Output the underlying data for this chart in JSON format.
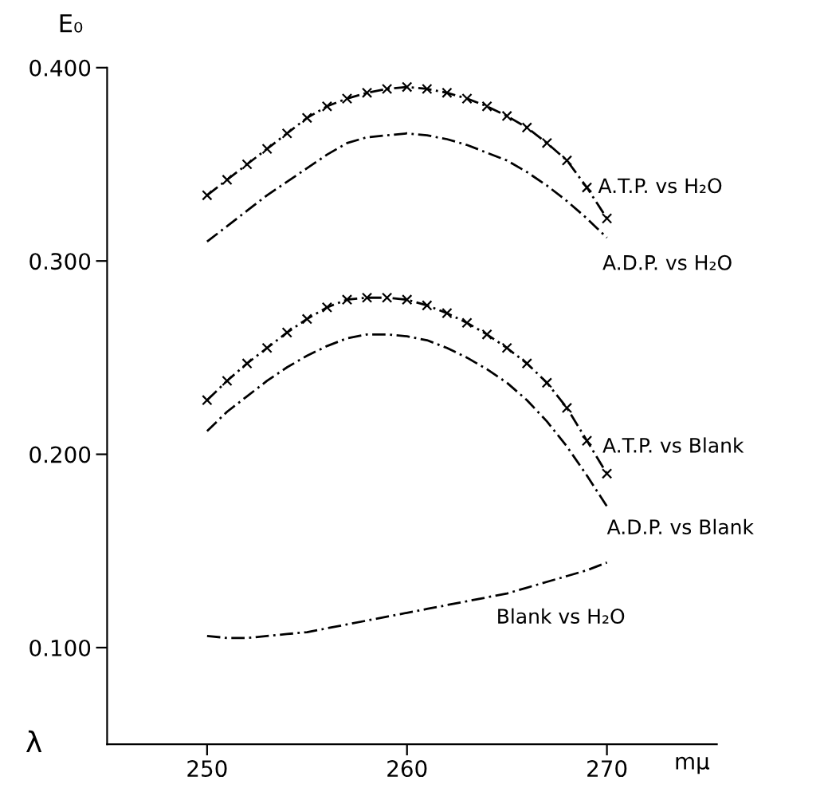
{
  "chart_data": {
    "type": "line",
    "ylabel": "E₀",
    "xlabel": "mμ",
    "annotations": [
      "λ"
    ],
    "x": [
      250,
      251,
      252,
      253,
      254,
      255,
      256,
      257,
      258,
      259,
      260,
      261,
      262,
      263,
      264,
      265,
      266,
      267,
      268,
      269,
      270
    ],
    "xlim": [
      245,
      275.5
    ],
    "xticks": [
      250,
      260,
      270
    ],
    "ylim": [
      0.05,
      0.4
    ],
    "yticks": [
      {
        "value": 0.1,
        "label": "0.100"
      },
      {
        "value": 0.2,
        "label": "0.200"
      },
      {
        "value": 0.3,
        "label": "0.300"
      },
      {
        "value": 0.4,
        "label": "0.400"
      }
    ],
    "grid": false,
    "series": [
      {
        "name": "A.T.P. vs H₂O",
        "color": "#000000",
        "marker": "cross",
        "line_style": "dashed",
        "values": [
          0.334,
          0.342,
          0.35,
          0.358,
          0.366,
          0.374,
          0.38,
          0.384,
          0.387,
          0.389,
          0.39,
          0.389,
          0.387,
          0.384,
          0.38,
          0.375,
          0.369,
          0.361,
          0.352,
          0.338,
          0.322
        ]
      },
      {
        "name": "A.D.P. vs H₂O",
        "color": "#000000",
        "marker": "none",
        "line_style": "dashed",
        "values": [
          0.31,
          0.318,
          0.326,
          0.334,
          0.341,
          0.348,
          0.355,
          0.361,
          0.364,
          0.365,
          0.366,
          0.365,
          0.363,
          0.36,
          0.356,
          0.352,
          0.346,
          0.339,
          0.331,
          0.322,
          0.312
        ]
      },
      {
        "name": "A.T.P. vs Blank",
        "color": "#000000",
        "marker": "cross",
        "line_style": "dashed",
        "values": [
          0.228,
          0.238,
          0.247,
          0.255,
          0.263,
          0.27,
          0.276,
          0.28,
          0.281,
          0.281,
          0.28,
          0.277,
          0.273,
          0.268,
          0.262,
          0.255,
          0.247,
          0.237,
          0.224,
          0.207,
          0.19
        ]
      },
      {
        "name": "A.D.P. vs Blank",
        "color": "#000000",
        "marker": "none",
        "line_style": "dashed",
        "values": [
          0.212,
          0.222,
          0.23,
          0.238,
          0.245,
          0.251,
          0.256,
          0.26,
          0.262,
          0.262,
          0.261,
          0.259,
          0.255,
          0.25,
          0.244,
          0.237,
          0.228,
          0.217,
          0.204,
          0.189,
          0.173
        ]
      },
      {
        "name": "Blank vs H₂O",
        "color": "#000000",
        "marker": "none",
        "line_style": "dashed",
        "values": [
          0.106,
          0.105,
          0.105,
          0.106,
          0.107,
          0.108,
          0.11,
          0.112,
          0.114,
          0.116,
          0.118,
          0.12,
          0.122,
          0.124,
          0.126,
          0.128,
          0.131,
          0.134,
          0.137,
          0.14,
          0.144
        ]
      }
    ]
  }
}
